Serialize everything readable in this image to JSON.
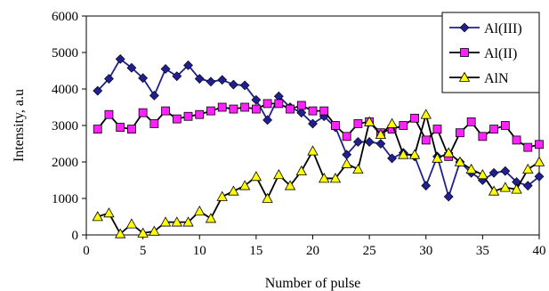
{
  "chart_data": {
    "type": "line",
    "xlabel": "Number of pulse",
    "ylabel": "Intensity, a.u",
    "xlim": [
      0,
      40
    ],
    "ylim": [
      0,
      6000
    ],
    "xticks": [
      0,
      5,
      10,
      15,
      20,
      25,
      30,
      35,
      40
    ],
    "yticks": [
      0,
      1000,
      2000,
      3000,
      4000,
      5000,
      6000
    ],
    "grid": false,
    "legend": "top-right",
    "x": [
      1,
      2,
      3,
      4,
      5,
      6,
      7,
      8,
      9,
      10,
      11,
      12,
      13,
      14,
      15,
      16,
      17,
      18,
      19,
      20,
      21,
      22,
      23,
      24,
      25,
      26,
      27,
      28,
      29,
      30,
      31,
      32,
      33,
      34,
      35,
      36,
      37,
      38,
      39,
      40
    ],
    "series": [
      {
        "name": "Al(III)",
        "marker": "diamond",
        "color": "#1f1f8f",
        "values": [
          3950,
          4280,
          4820,
          4580,
          4300,
          3820,
          4550,
          4350,
          4650,
          4280,
          4200,
          4250,
          4120,
          4100,
          3700,
          3150,
          3800,
          3500,
          3350,
          3050,
          3250,
          2950,
          2200,
          2550,
          2550,
          2500,
          2100,
          2250,
          2150,
          1350,
          2150,
          1050,
          2000,
          1700,
          1500,
          1700,
          1750,
          1450,
          1350,
          1600
        ]
      },
      {
        "name": "Al(II)",
        "marker": "square",
        "color": "#ff22ff",
        "values": [
          2900,
          3300,
          2950,
          2900,
          3350,
          3050,
          3400,
          3180,
          3250,
          3300,
          3400,
          3500,
          3450,
          3500,
          3450,
          3600,
          3600,
          3450,
          3550,
          3400,
          3400,
          3000,
          2700,
          3050,
          3100,
          2800,
          2900,
          3000,
          3200,
          2600,
          2900,
          2150,
          2800,
          3100,
          2700,
          2900,
          3000,
          2600,
          2400,
          2480
        ]
      },
      {
        "name": "AlN",
        "marker": "triangle",
        "color": "#ffff00",
        "values": [
          500,
          600,
          30,
          300,
          50,
          100,
          350,
          350,
          350,
          650,
          450,
          1050,
          1200,
          1350,
          1600,
          1000,
          1650,
          1350,
          1750,
          2300,
          1550,
          1550,
          1950,
          1800,
          3100,
          2750,
          3050,
          2200,
          2200,
          3300,
          2100,
          2250,
          2000,
          1800,
          1650,
          1200,
          1300,
          1250,
          1800,
          2000
        ]
      }
    ]
  }
}
